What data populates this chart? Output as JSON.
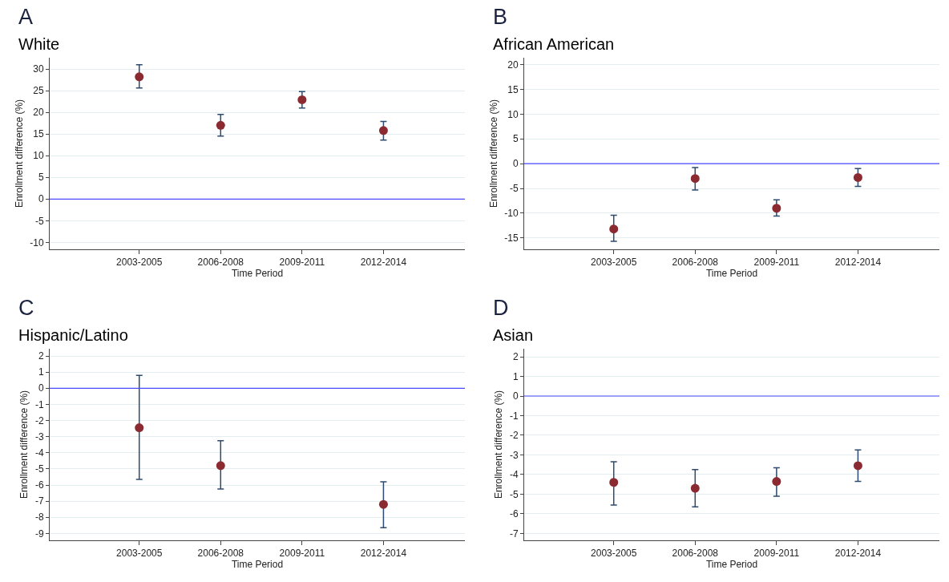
{
  "chart_data": [
    {
      "type": "scatter",
      "title": "A",
      "subtitle": "White",
      "xlabel": "Time Period",
      "ylabel": "Enrollment difference (%)",
      "categories": [
        "2003-2005",
        "2006-2008",
        "2009-2011",
        "2012-2014"
      ],
      "series": [
        {
          "color": "#8b2a30",
          "values": [
            28.2,
            17.0,
            22.9,
            15.8
          ],
          "errors": [
            [
              25.6,
              31.0
            ],
            [
              14.5,
              19.5
            ],
            [
              21.0,
              24.8
            ],
            [
              13.6,
              17.9
            ]
          ]
        }
      ],
      "ylim": [
        -11.6,
        32.6
      ],
      "yticks": [
        -10,
        -5,
        0,
        5,
        10,
        15,
        20,
        25,
        30
      ],
      "grid": "y",
      "marker": "circle",
      "ref_lines": [
        {
          "axis": "y",
          "value": 0,
          "color": "#4a4aff"
        }
      ]
    },
    {
      "type": "scatter",
      "title": "B",
      "subtitle": "African American",
      "xlabel": "Time Period",
      "ylabel": "Enrollment difference (%)",
      "categories": [
        "2003-2005",
        "2006-2008",
        "2009-2011",
        "2012-2014"
      ],
      "series": [
        {
          "color": "#8b2a30",
          "values": [
            -13.2,
            -3.0,
            -9.0,
            -2.8
          ],
          "errors": [
            [
              -15.7,
              -10.4
            ],
            [
              -5.3,
              -0.8
            ],
            [
              -10.6,
              -7.3
            ],
            [
              -4.6,
              -1.0
            ]
          ]
        }
      ],
      "ylim": [
        -17.3,
        21.4
      ],
      "yticks": [
        -15,
        -10,
        -5,
        0,
        5,
        10,
        15,
        20
      ],
      "grid": "y",
      "marker": "circle",
      "ref_lines": [
        {
          "axis": "y",
          "value": 0,
          "color": "#4a4aff"
        }
      ]
    },
    {
      "type": "scatter",
      "title": "C",
      "subtitle": "Hispanic/Latino",
      "xlabel": "Time Period",
      "ylabel": "Enrollment difference (%)",
      "categories": [
        "2003-2005",
        "2006-2008",
        "2009-2011",
        "2012-2014"
      ],
      "series": [
        {
          "color": "#8b2a30",
          "values": [
            -2.45,
            -4.8,
            null,
            -7.2
          ],
          "errors": [
            [
              -5.65,
              0.8
            ],
            [
              -6.25,
              -3.25
            ],
            null,
            [
              -8.65,
              -5.8
            ]
          ]
        }
      ],
      "ylim": [
        -9.43,
        2.45
      ],
      "yticks": [
        -9,
        -8,
        -7,
        -6,
        -5,
        -4,
        -3,
        -2,
        -1,
        0,
        1,
        2
      ],
      "grid": "y",
      "marker": "circle",
      "ref_lines": [
        {
          "axis": "y",
          "value": 0,
          "color": "#4a4aff"
        }
      ]
    },
    {
      "type": "scatter",
      "title": "D",
      "subtitle": "Asian",
      "xlabel": "Time Period",
      "ylabel": "Enrollment difference (%)",
      "categories": [
        "2003-2005",
        "2006-2008",
        "2009-2011",
        "2012-2014"
      ],
      "series": [
        {
          "color": "#8b2a30",
          "values": [
            -4.4,
            -4.7,
            -4.35,
            -3.55
          ],
          "errors": [
            [
              -5.55,
              -3.35
            ],
            [
              -5.65,
              -3.75
            ],
            [
              -5.1,
              -3.65
            ],
            [
              -4.35,
              -2.75
            ]
          ]
        }
      ],
      "ylim": [
        -7.35,
        2.41
      ],
      "yticks": [
        -7,
        -6,
        -5,
        -4,
        -3,
        -2,
        -1,
        0,
        1,
        2
      ],
      "grid": "y",
      "marker": "circle",
      "ref_lines": [
        {
          "axis": "y",
          "value": 0,
          "color": "#4a4aff"
        }
      ]
    }
  ]
}
